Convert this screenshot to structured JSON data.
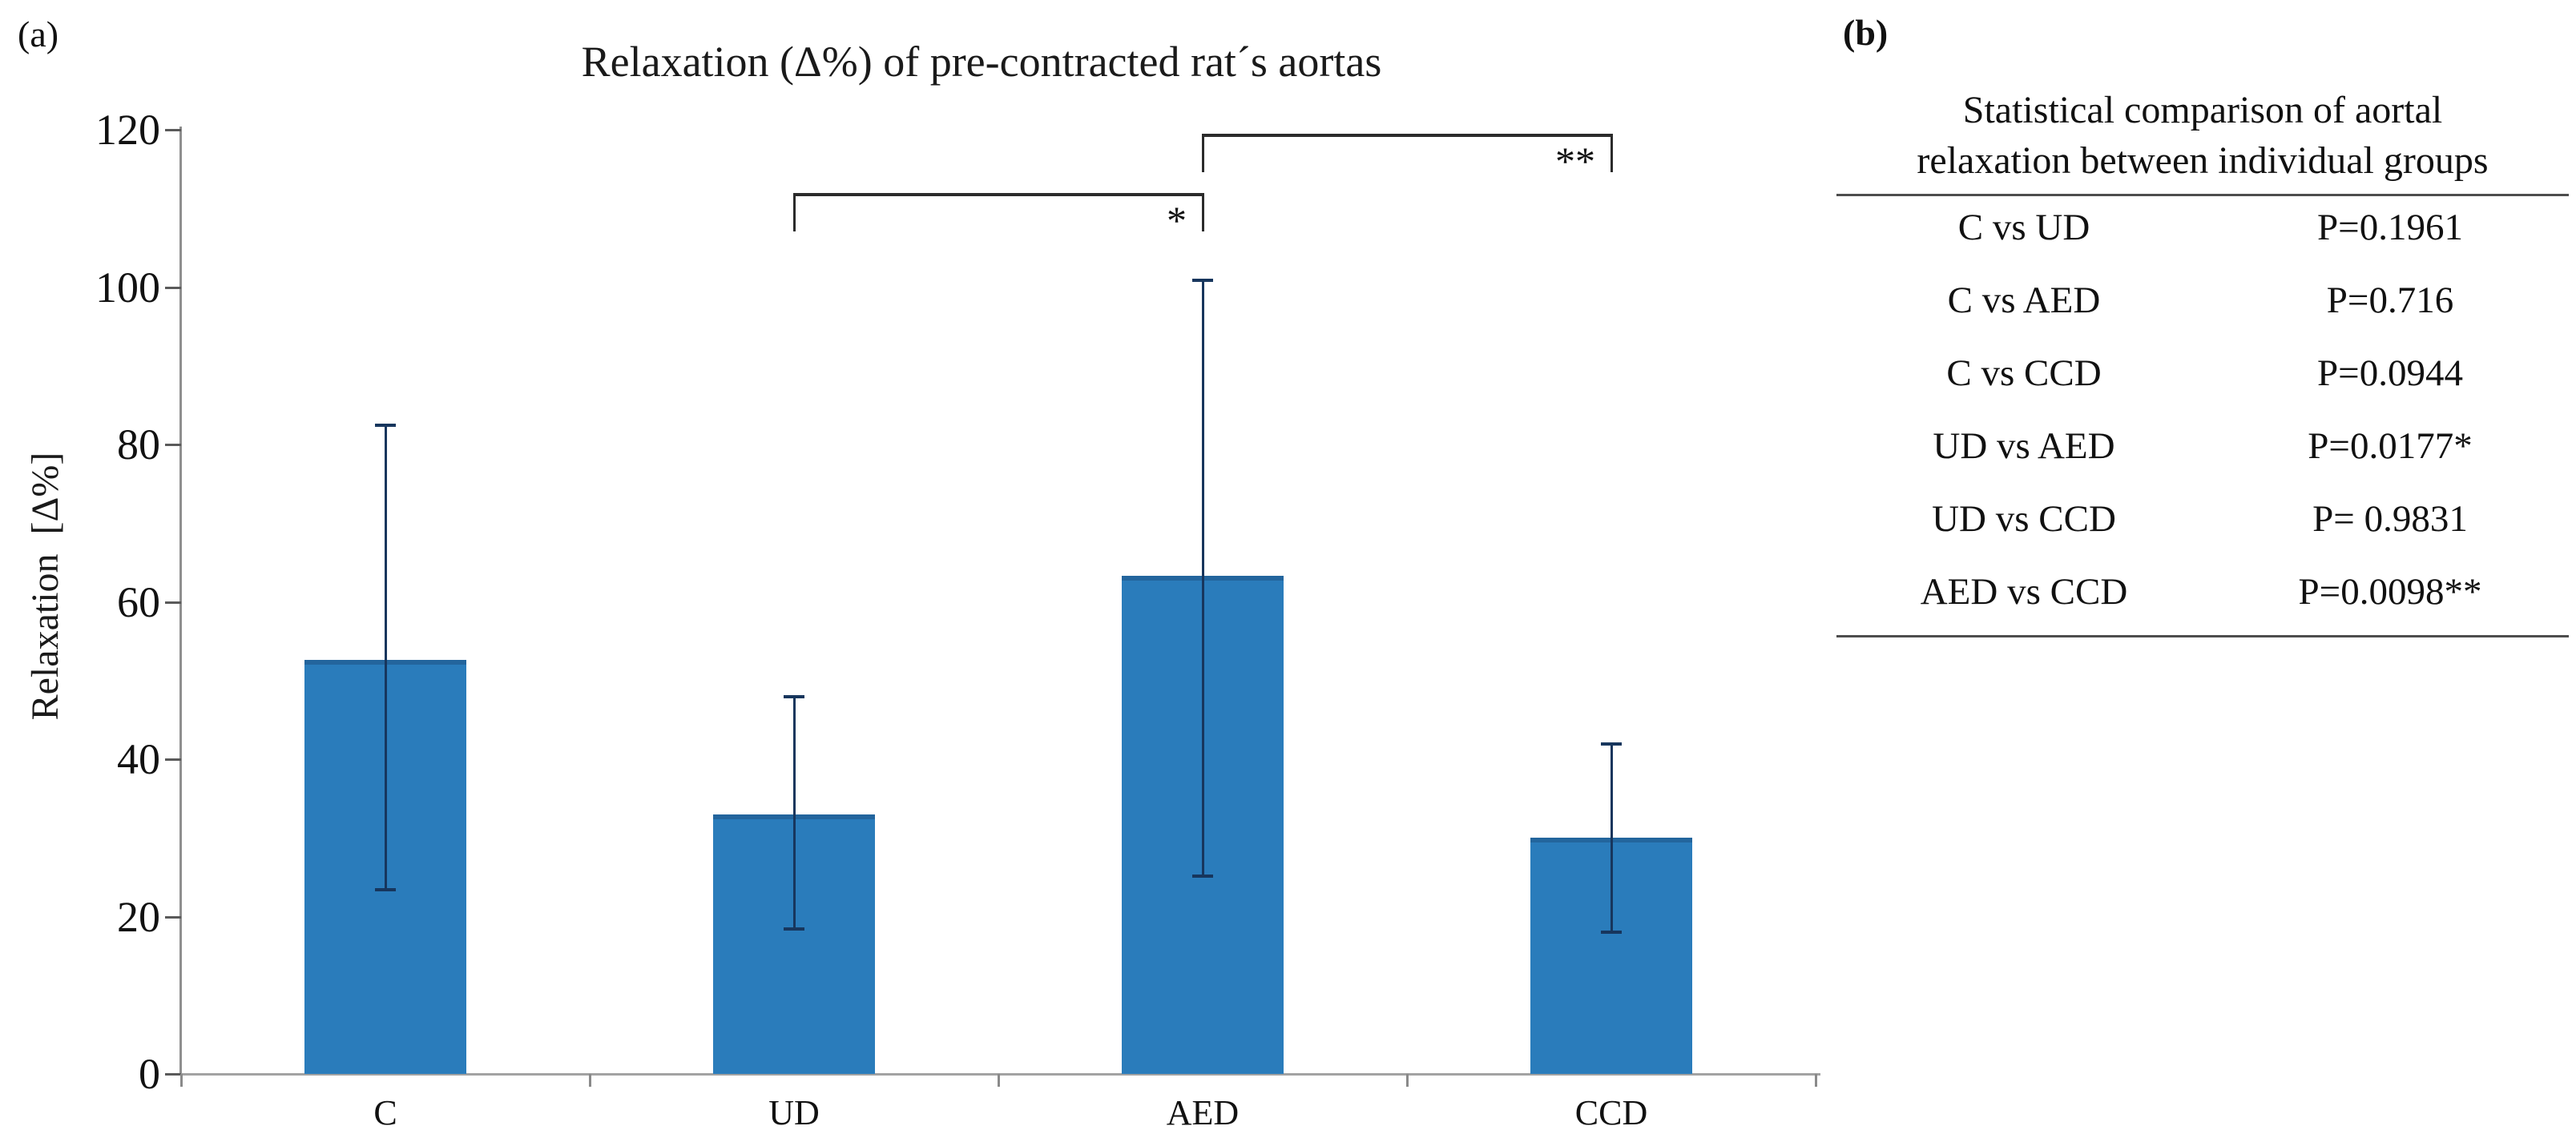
{
  "panel_a": {
    "label": "(a)"
  },
  "chart_data": {
    "type": "bar",
    "title": "Relaxation (Δ%) of pre-contracted rat´s aortas",
    "ylabel": "Relaxation  [Δ%]",
    "xlabel": "",
    "categories": [
      "C",
      "UD",
      "AED",
      "CCD"
    ],
    "values": [
      52.6,
      33,
      63.3,
      30
    ],
    "error_low": [
      23.4,
      18.4,
      25.1,
      18
    ],
    "error_high": [
      82.5,
      48,
      101,
      42
    ],
    "ylim": [
      0,
      120
    ],
    "yticks": [
      0,
      20,
      40,
      60,
      80,
      100,
      120
    ],
    "grid": false,
    "legend": "none",
    "bar_color": "#2A7CBB",
    "error_color": "#17365D",
    "axis_color": "#8F8F8F",
    "significance_brackets": [
      {
        "from": "UD",
        "to": "AED",
        "y": 112,
        "label": "*"
      },
      {
        "from": "AED",
        "to": "CCD",
        "y": 119.5,
        "label": "**"
      }
    ]
  },
  "panel_b": {
    "label": "(b)",
    "table": {
      "title_line1": "Statistical comparison of aortal",
      "title_line2": "relaxation between individual groups",
      "rows": [
        {
          "comparison": "C vs UD",
          "p_value": "P=0.1961"
        },
        {
          "comparison": "C vs AED",
          "p_value": "P=0.716"
        },
        {
          "comparison": "C vs CCD",
          "p_value": "P=0.0944"
        },
        {
          "comparison": "UD vs AED",
          "p_value": "P=0.0177*"
        },
        {
          "comparison": "UD vs CCD",
          "p_value": "P= 0.9831"
        },
        {
          "comparison": "AED vs CCD",
          "p_value": "P=0.0098**"
        }
      ]
    }
  }
}
